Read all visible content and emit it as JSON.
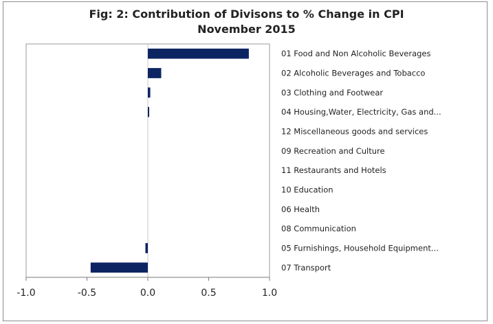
{
  "chart_data": {
    "type": "bar",
    "orientation": "horizontal",
    "title_line1": "Fig: 2: Contribution of Divisons to % Change in CPI",
    "title_line2": "November 2015",
    "categories": [
      "01 Food and Non Alcoholic Beverages",
      "02 Alcoholic Beverages and Tobacco",
      "03 Clothing and Footwear",
      "04 Housing,Water, Electricity, Gas and...",
      "12 Miscellaneous goods and services",
      "09 Recreation and Culture",
      "11 Restaurants and Hotels",
      "10 Education",
      "06 Health",
      "08 Communication",
      "05 Furnishings, Household Equipment...",
      "07 Transport"
    ],
    "values": [
      0.83,
      0.11,
      0.02,
      0.01,
      0.0,
      0.0,
      0.0,
      0.0,
      0.0,
      0.0,
      -0.02,
      -0.47
    ],
    "xlim": [
      -1.0,
      1.0
    ],
    "xticks": [
      "-1.0",
      "-0.5",
      "0.0",
      "0.5",
      "1.0"
    ],
    "xtick_values": [
      -1.0,
      -0.5,
      0.0,
      0.5,
      1.0
    ],
    "bar_color": "#0d2463",
    "grid": false,
    "legend": "none"
  }
}
